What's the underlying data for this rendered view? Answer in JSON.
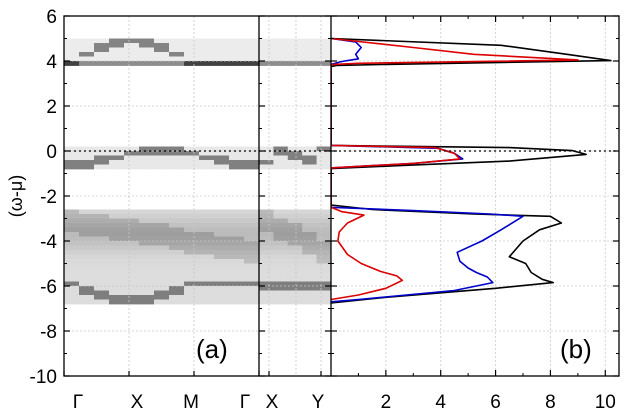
{
  "chart_data": [
    {
      "type": "heatmap",
      "panel_label": "(a)",
      "ylabel": "(ω-μ)",
      "ylim": [
        -10,
        6
      ],
      "y_ticks": [
        "6",
        "4",
        "2",
        "0",
        "-2",
        "-4",
        "-6",
        "-8",
        "-10"
      ],
      "y_tick_values": [
        6,
        4,
        2,
        0,
        -2,
        -4,
        -6,
        -8,
        -10
      ],
      "k_path_1": [
        "Γ",
        "X",
        "M",
        "Γ"
      ],
      "k_path_2": [
        "X",
        "Y"
      ],
      "colormap": "grayscale (white = 0, black = max spectral weight)",
      "reference_line": {
        "y": 0,
        "style": "dotted"
      },
      "features": {
        "upper_band": {
          "energy_range": [
            3.8,
            5.1
          ],
          "peak_at_M": 4.9,
          "baseline": 4.0
        },
        "near_fermi_band": {
          "energy_range": [
            -0.7,
            0.3
          ]
        },
        "lower_band": {
          "energy_range": [
            -6.7,
            -2.5
          ],
          "bottom_at_M": -6.5,
          "bottom_near_X": -5.9
        }
      }
    },
    {
      "type": "line",
      "panel_label": "(b)",
      "xlim": [
        0,
        10.5
      ],
      "x_ticks": [
        "2",
        "4",
        "6",
        "8",
        "10"
      ],
      "x_tick_values": [
        2,
        4,
        6,
        8,
        10
      ],
      "ylim": [
        -10,
        6
      ],
      "grid": true,
      "orientation": "density on x-axis, energy on y-axis",
      "series": [
        {
          "color": "#000000",
          "points": [
            [
              0,
              5.0
            ],
            [
              6.2,
              4.7
            ],
            [
              8.6,
              4.3
            ],
            [
              10.2,
              4.02
            ],
            [
              2.0,
              3.85
            ],
            [
              0.2,
              3.8
            ],
            [
              0,
              3.75
            ],
            [
              0,
              0.25
            ],
            [
              6.5,
              0.15
            ],
            [
              8.8,
              0.02
            ],
            [
              9.3,
              -0.15
            ],
            [
              6.5,
              -0.45
            ],
            [
              2.5,
              -0.65
            ],
            [
              0,
              -0.78
            ],
            [
              0,
              -2.4
            ],
            [
              1.5,
              -2.6
            ],
            [
              5.2,
              -2.8
            ],
            [
              8.0,
              -2.9
            ],
            [
              8.4,
              -3.2
            ],
            [
              7.6,
              -3.5
            ],
            [
              7.0,
              -4.0
            ],
            [
              6.5,
              -4.7
            ],
            [
              7.1,
              -5.0
            ],
            [
              7.3,
              -5.4
            ],
            [
              7.7,
              -5.7
            ],
            [
              8.1,
              -5.85
            ],
            [
              6.0,
              -6.1
            ],
            [
              2.0,
              -6.5
            ],
            [
              0,
              -6.75
            ]
          ]
        },
        {
          "color": "#0000cc",
          "points": [
            [
              0,
              5.0
            ],
            [
              0.9,
              4.85
            ],
            [
              1.1,
              4.6
            ],
            [
              0.9,
              4.3
            ],
            [
              1.0,
              4.1
            ],
            [
              0.5,
              4.0
            ],
            [
              0.3,
              3.95
            ],
            [
              0,
              3.85
            ],
            [
              0,
              0.25
            ],
            [
              3.9,
              0.12
            ],
            [
              4.5,
              -0.1
            ],
            [
              4.8,
              -0.35
            ],
            [
              3.0,
              -0.55
            ],
            [
              0,
              -0.75
            ],
            [
              0,
              -2.5
            ],
            [
              3.0,
              -2.65
            ],
            [
              5.8,
              -2.8
            ],
            [
              7.0,
              -2.9
            ],
            [
              6.2,
              -3.5
            ],
            [
              5.5,
              -4.0
            ],
            [
              4.6,
              -4.5
            ],
            [
              4.7,
              -4.9
            ],
            [
              5.0,
              -5.2
            ],
            [
              5.3,
              -5.4
            ],
            [
              5.7,
              -5.6
            ],
            [
              5.9,
              -5.85
            ],
            [
              4.5,
              -6.2
            ],
            [
              1.0,
              -6.6
            ],
            [
              0,
              -6.7
            ]
          ]
        },
        {
          "color": "#dd0000",
          "points": [
            [
              0,
              5.0
            ],
            [
              3.0,
              4.6
            ],
            [
              5.2,
              4.3
            ],
            [
              9.0,
              4.05
            ],
            [
              4.0,
              3.95
            ],
            [
              1.0,
              3.9
            ],
            [
              0.1,
              3.85
            ],
            [
              0,
              3.8
            ],
            [
              0,
              0.25
            ],
            [
              3.8,
              0.15
            ],
            [
              4.5,
              -0.1
            ],
            [
              4.7,
              -0.35
            ],
            [
              3.0,
              -0.55
            ],
            [
              0,
              -0.75
            ],
            [
              0,
              -2.5
            ],
            [
              0.4,
              -2.7
            ],
            [
              1.2,
              -2.85
            ],
            [
              0.6,
              -3.2
            ],
            [
              0.3,
              -3.6
            ],
            [
              0.25,
              -4.0
            ],
            [
              0.6,
              -4.6
            ],
            [
              1.1,
              -5.0
            ],
            [
              1.8,
              -5.35
            ],
            [
              2.4,
              -5.55
            ],
            [
              2.6,
              -5.75
            ],
            [
              2.0,
              -6.1
            ],
            [
              1.0,
              -6.4
            ],
            [
              0,
              -6.6
            ]
          ]
        }
      ]
    }
  ]
}
